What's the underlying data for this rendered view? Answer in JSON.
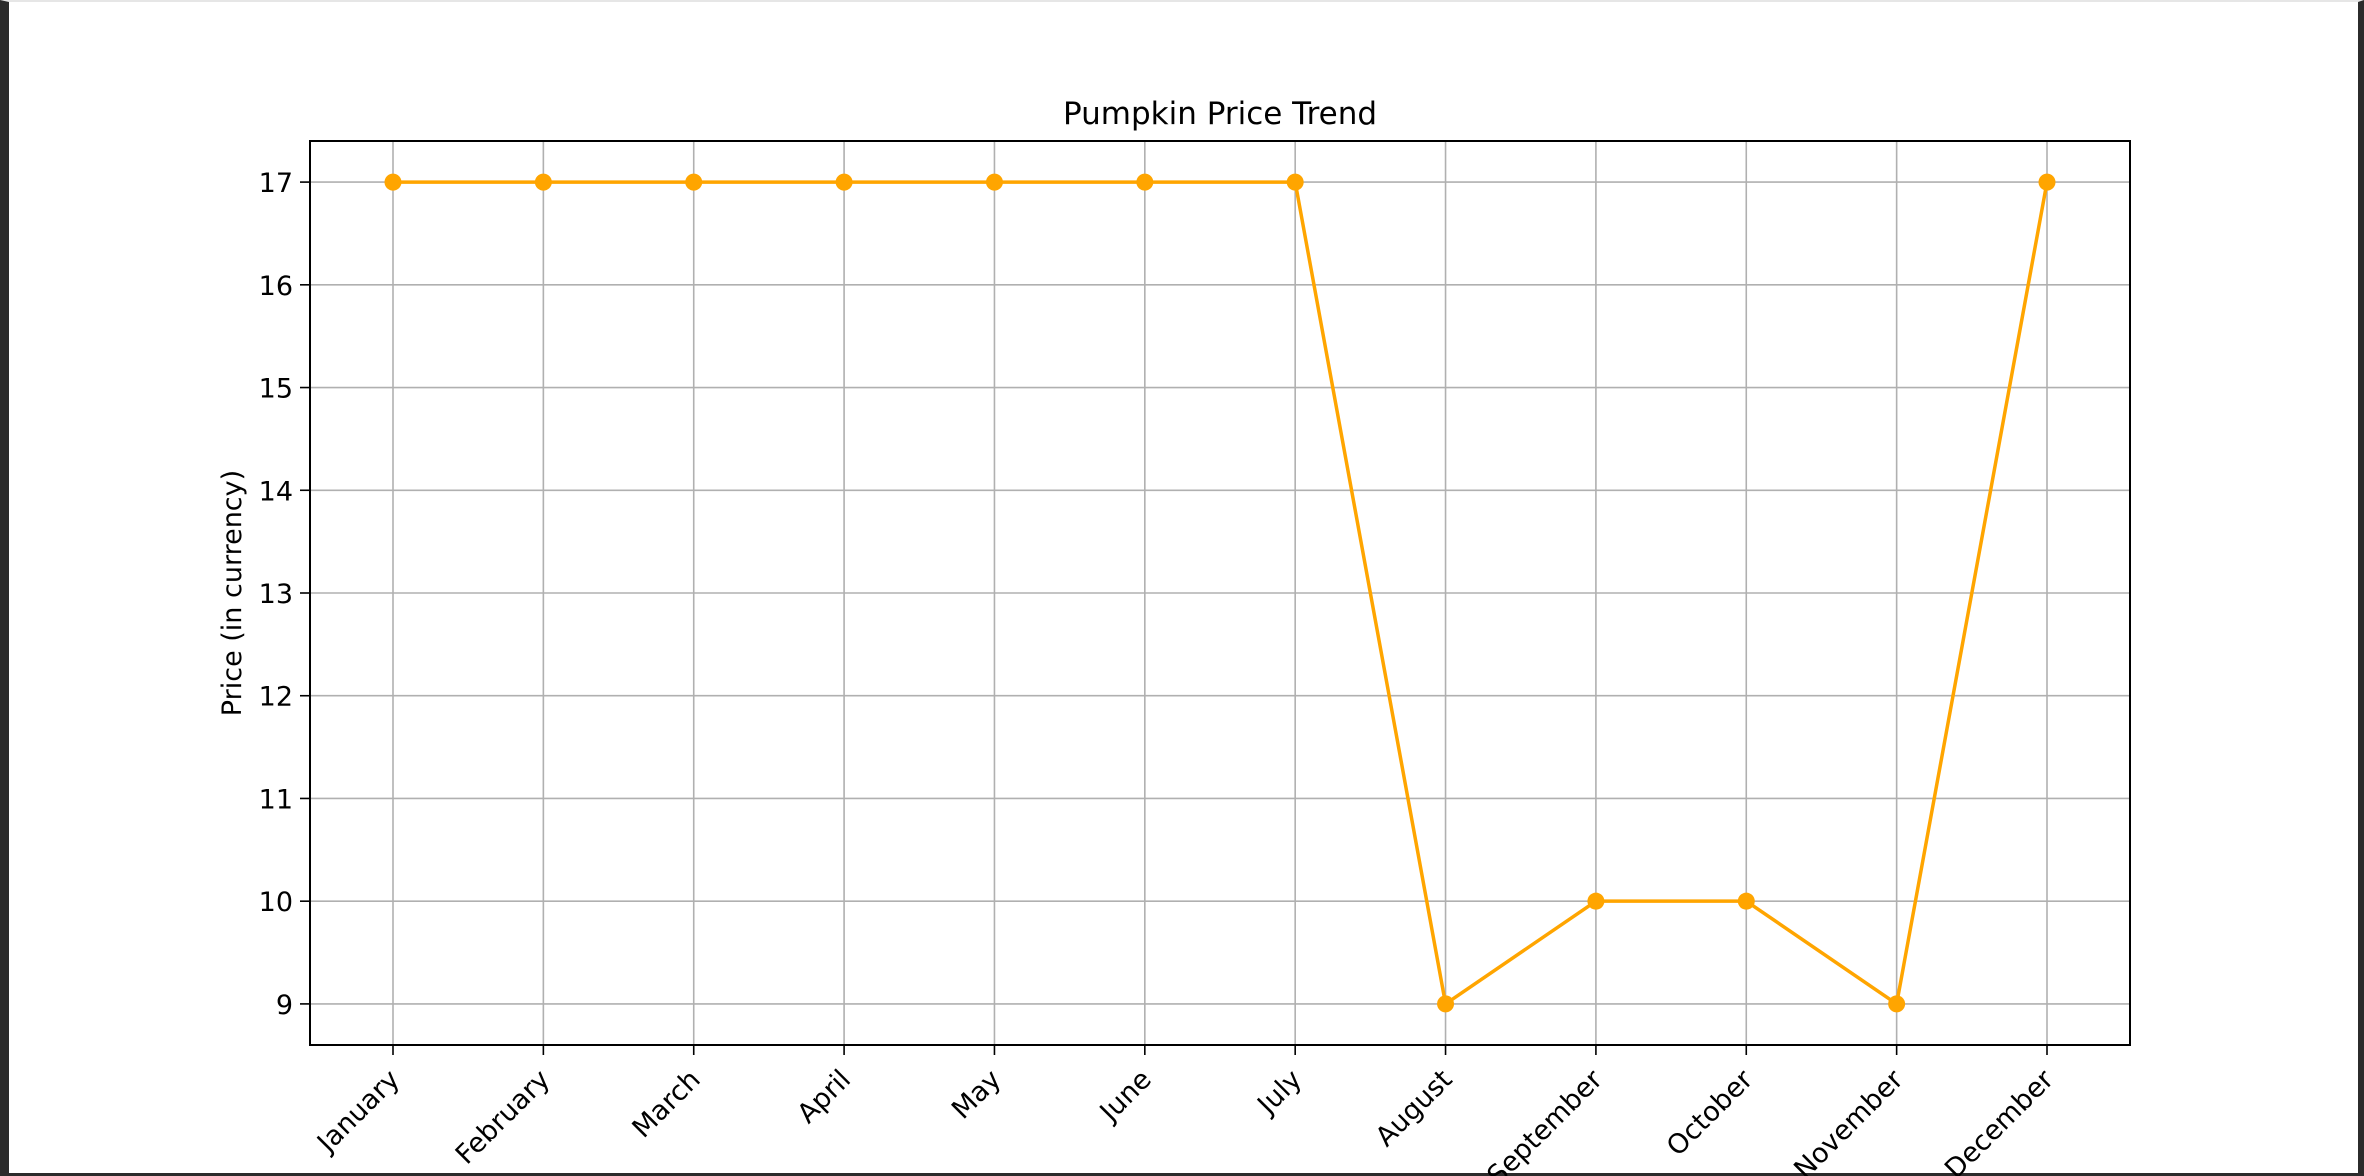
{
  "chart_data": {
    "type": "line",
    "title": "Pumpkin Price Trend",
    "xlabel": "",
    "ylabel": "Price (in currency)",
    "categories": [
      "January",
      "February",
      "March",
      "April",
      "May",
      "June",
      "July",
      "August",
      "September",
      "October",
      "November",
      "December"
    ],
    "series": [
      {
        "values": [
          17,
          17,
          17,
          17,
          17,
          17,
          17,
          9,
          10,
          10,
          9,
          17
        ],
        "color": "#FFA500",
        "marker": "circle"
      }
    ],
    "yticks": [
      9,
      10,
      11,
      12,
      13,
      14,
      15,
      16,
      17
    ],
    "ylim": [
      8.6,
      17.4
    ],
    "grid": true,
    "legend": "none"
  }
}
